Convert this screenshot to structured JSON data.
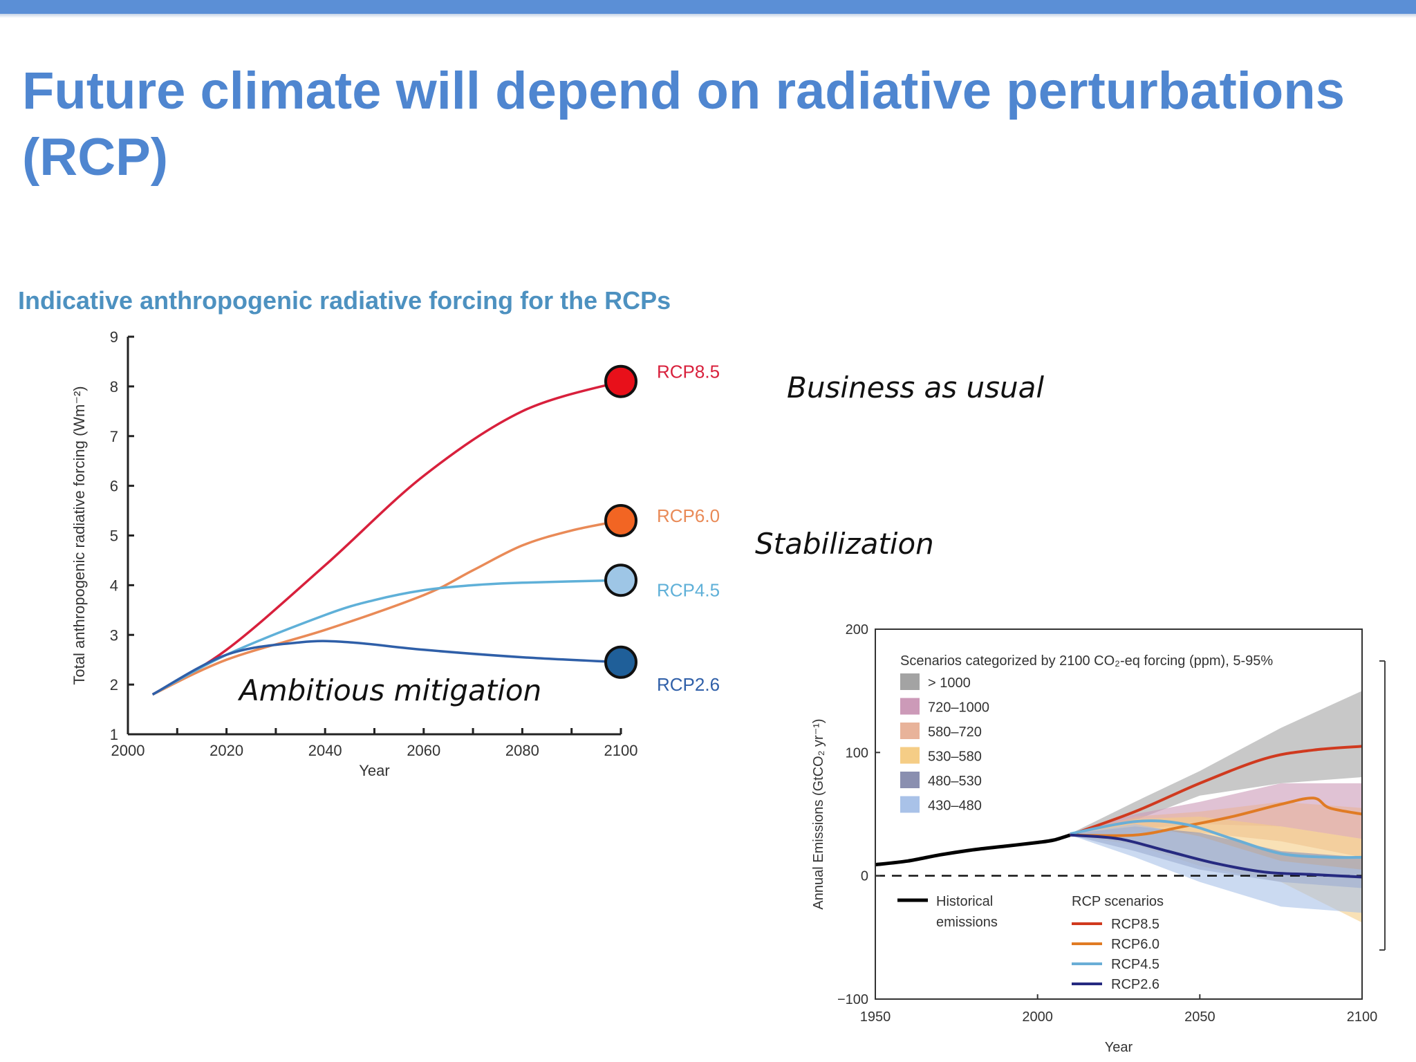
{
  "slide": {
    "title_line1": "Future climate will depend on radiative perturbations",
    "title_line2": "(RCP)",
    "accent_color": "#4f86d0"
  },
  "annotations": {
    "business": "Business as usual",
    "stabilization": "Stabilization",
    "mitigation": "Ambitious mitigation"
  },
  "chart_data": [
    {
      "type": "line",
      "title": "Indicative anthropogenic radiative forcing for the RCPs",
      "xlabel": "Year",
      "ylabel": "Total anthropogenic radiative forcing (Wm⁻²)",
      "xlim": [
        2000,
        2100
      ],
      "ylim": [
        1,
        9
      ],
      "xticks": [
        2000,
        2020,
        2040,
        2060,
        2080,
        2100
      ],
      "yticks": [
        1,
        2,
        3,
        4,
        5,
        6,
        7,
        8,
        9
      ],
      "grid": false,
      "series": [
        {
          "name": "RCP8.5",
          "color": "#d8203c",
          "marker_color": "#e8101a",
          "points": [
            [
              2005,
              1.8
            ],
            [
              2020,
              2.7
            ],
            [
              2040,
              4.4
            ],
            [
              2060,
              6.2
            ],
            [
              2080,
              7.5
            ],
            [
              2100,
              8.1
            ]
          ]
        },
        {
          "name": "RCP6.0",
          "color": "#e98a57",
          "marker_color": "#f26523",
          "points": [
            [
              2005,
              1.8
            ],
            [
              2020,
              2.5
            ],
            [
              2040,
              3.1
            ],
            [
              2060,
              3.8
            ],
            [
              2070,
              4.3
            ],
            [
              2080,
              4.8
            ],
            [
              2090,
              5.1
            ],
            [
              2100,
              5.3
            ]
          ]
        },
        {
          "name": "RCP4.5",
          "color": "#5fb0d8",
          "marker_color": "#9ec6e6",
          "points": [
            [
              2005,
              1.8
            ],
            [
              2020,
              2.6
            ],
            [
              2040,
              3.4
            ],
            [
              2050,
              3.7
            ],
            [
              2060,
              3.9
            ],
            [
              2070,
              4.0
            ],
            [
              2080,
              4.05
            ],
            [
              2100,
              4.1
            ]
          ]
        },
        {
          "name": "RCP2.6",
          "color": "#2f5fa8",
          "marker_color": "#1f5f99",
          "points": [
            [
              2005,
              1.8
            ],
            [
              2020,
              2.6
            ],
            [
              2035,
              2.85
            ],
            [
              2045,
              2.85
            ],
            [
              2060,
              2.7
            ],
            [
              2080,
              2.55
            ],
            [
              2100,
              2.45
            ]
          ]
        }
      ]
    },
    {
      "type": "area",
      "xlabel": "Year",
      "ylabel": "Annual Emissions (GtCO₂ yr⁻¹)",
      "xlim": [
        1950,
        2100
      ],
      "ylim": [
        -100,
        200
      ],
      "xticks": [
        1950,
        2000,
        2050,
        2100
      ],
      "yticks": [
        -100,
        0,
        100,
        200
      ],
      "grid": false,
      "legend_title": "Scenarios categorized by 2100 CO₂-eq forcing (ppm), 5-95%",
      "legend_placement": "top-left",
      "bands": [
        {
          "name": "> 1000",
          "color": "#a3a3a3",
          "upper": [
            [
              2010,
              34
            ],
            [
              2030,
              60
            ],
            [
              2050,
              85
            ],
            [
              2075,
              120
            ],
            [
              2100,
              150
            ]
          ],
          "lower": [
            [
              2100,
              80
            ],
            [
              2075,
              75
            ],
            [
              2050,
              65
            ],
            [
              2030,
              45
            ],
            [
              2010,
              33
            ]
          ]
        },
        {
          "name": "720–1000",
          "color": "#cc9ab8",
          "upper": [
            [
              2010,
              34
            ],
            [
              2030,
              50
            ],
            [
              2050,
              60
            ],
            [
              2075,
              75
            ],
            [
              2100,
              75
            ]
          ],
          "lower": [
            [
              2100,
              30
            ],
            [
              2075,
              40
            ],
            [
              2050,
              42
            ],
            [
              2030,
              38
            ],
            [
              2010,
              33
            ]
          ]
        },
        {
          "name": "580–720",
          "color": "#e8b39a",
          "upper": [
            [
              2010,
              34
            ],
            [
              2030,
              48
            ],
            [
              2050,
              52
            ],
            [
              2075,
              60
            ],
            [
              2100,
              55
            ]
          ],
          "lower": [
            [
              2100,
              15
            ],
            [
              2075,
              28
            ],
            [
              2050,
              35
            ],
            [
              2030,
              35
            ],
            [
              2010,
              33
            ]
          ]
        },
        {
          "name": "530–580",
          "color": "#f5cd86",
          "upper": [
            [
              2010,
              34
            ],
            [
              2030,
              46
            ],
            [
              2050,
              48
            ],
            [
              2075,
              40
            ],
            [
              2100,
              30
            ]
          ],
          "lower": [
            [
              2100,
              -38
            ],
            [
              2075,
              -5
            ],
            [
              2050,
              8
            ],
            [
              2030,
              25
            ],
            [
              2010,
              33
            ]
          ]
        },
        {
          "name": "480–530",
          "color": "#8a8fb0",
          "upper": [
            [
              2010,
              34
            ],
            [
              2030,
              40
            ],
            [
              2050,
              35
            ],
            [
              2075,
              20
            ],
            [
              2100,
              15
            ]
          ],
          "lower": [
            [
              2100,
              -10
            ],
            [
              2075,
              -5
            ],
            [
              2050,
              5
            ],
            [
              2030,
              20
            ],
            [
              2010,
              33
            ]
          ]
        },
        {
          "name": "430–480",
          "color": "#a9c2e8",
          "upper": [
            [
              2010,
              34
            ],
            [
              2030,
              42
            ],
            [
              2050,
              32
            ],
            [
              2075,
              12
            ],
            [
              2100,
              5
            ]
          ],
          "lower": [
            [
              2100,
              -30
            ],
            [
              2075,
              -25
            ],
            [
              2050,
              -5
            ],
            [
              2030,
              15
            ],
            [
              2010,
              33
            ]
          ]
        }
      ],
      "historical": {
        "name": "Historical emissions",
        "color": "#000000",
        "points": [
          [
            1950,
            9
          ],
          [
            1960,
            12
          ],
          [
            1970,
            17
          ],
          [
            1980,
            21
          ],
          [
            1990,
            24
          ],
          [
            2000,
            27
          ],
          [
            2005,
            29
          ],
          [
            2010,
            33
          ]
        ]
      },
      "rcp_legend_title": "RCP scenarios",
      "series": [
        {
          "name": "RCP8.5",
          "color": "#d03a1f",
          "points": [
            [
              2010,
              33
            ],
            [
              2030,
              52
            ],
            [
              2050,
              75
            ],
            [
              2070,
              95
            ],
            [
              2085,
              102
            ],
            [
              2100,
              105
            ]
          ]
        },
        {
          "name": "RCP6.0",
          "color": "#e07b24",
          "points": [
            [
              2010,
              33
            ],
            [
              2030,
              33
            ],
            [
              2045,
              40
            ],
            [
              2060,
              48
            ],
            [
              2075,
              58
            ],
            [
              2085,
              63
            ],
            [
              2090,
              55
            ],
            [
              2100,
              50
            ]
          ]
        },
        {
          "name": "RCP4.5",
          "color": "#6aaed6",
          "points": [
            [
              2010,
              34
            ],
            [
              2030,
              44
            ],
            [
              2045,
              42
            ],
            [
              2060,
              30
            ],
            [
              2075,
              18
            ],
            [
              2090,
              15
            ],
            [
              2100,
              15
            ]
          ]
        },
        {
          "name": "RCP2.6",
          "color": "#262a80",
          "points": [
            [
              2010,
              33
            ],
            [
              2025,
              30
            ],
            [
              2040,
              20
            ],
            [
              2055,
              10
            ],
            [
              2070,
              3
            ],
            [
              2085,
              1
            ],
            [
              2100,
              -1
            ]
          ]
        }
      ]
    }
  ]
}
